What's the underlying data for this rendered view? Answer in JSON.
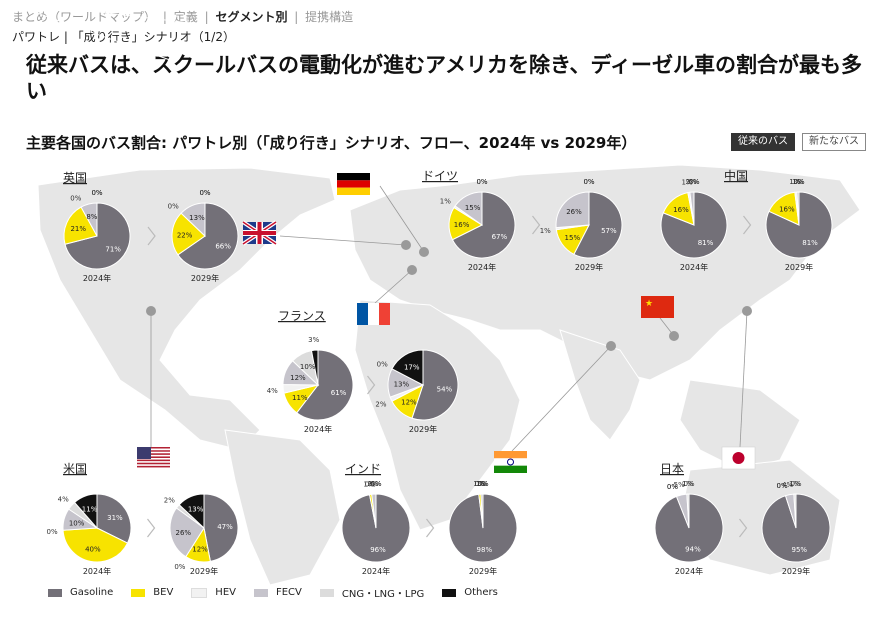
{
  "nav": {
    "items": [
      {
        "label": "まとめ（ワールドマップ）",
        "active": false
      },
      {
        "label": "定義",
        "active": false
      },
      {
        "label": "セグメント別",
        "active": true
      },
      {
        "label": "提携構造",
        "active": false
      }
    ]
  },
  "subtitle": "パワトレ | 「成り行き」シナリオ（1/2）",
  "headline": "従来バスは、スクールバスの電動化が進むアメリカを除き、ディーゼル車の割合が最も多い",
  "chart_heading": "主要各国のバス割合: パワトレ別（「成り行き」シナリオ、フロー、2024年 vs 2029年）",
  "toggles": {
    "active": "従来のバス",
    "inactive": "新たなバス"
  },
  "colors": {
    "gasoline": "#737078",
    "bev": "#f7e300",
    "hev": "#f2f2f2",
    "fecv": "#c6c4cc",
    "cng": "#dcdcdc",
    "others": "#111111",
    "map": "#e6e6e6"
  },
  "legend": [
    {
      "key": "gasoline",
      "label": "Gasoline"
    },
    {
      "key": "bev",
      "label": "BEV"
    },
    {
      "key": "hev",
      "label": "HEV"
    },
    {
      "key": "fecv",
      "label": "FECV"
    },
    {
      "key": "cng",
      "label": "CNG・LNG・LPG"
    },
    {
      "key": "others",
      "label": "Others"
    }
  ],
  "chart_data": {
    "type": "pie",
    "series_order": [
      "Gasoline",
      "BEV",
      "HEV",
      "FECV",
      "CNG・LNG・LPG",
      "Others"
    ],
    "countries": [
      {
        "name": "英国",
        "flag": "uk",
        "pies": [
          {
            "year": "2024年",
            "values": [
              71,
              21,
              0,
              8,
              0,
              0
            ]
          },
          {
            "year": "2029年",
            "values": [
              66,
              22,
              0,
              13,
              0,
              0
            ]
          }
        ]
      },
      {
        "name": "ドイツ",
        "flag": "de",
        "pies": [
          {
            "year": "2024年",
            "values": [
              67,
              16,
              1,
              15,
              0,
              0
            ]
          },
          {
            "year": "2029年",
            "values": [
              57,
              15,
              1,
              26,
              0,
              0
            ]
          }
        ]
      },
      {
        "name": "中国",
        "flag": "cn",
        "pies": [
          {
            "year": "2024年",
            "values": [
              81,
              16,
              1,
              2,
              0,
              0
            ]
          },
          {
            "year": "2029年",
            "values": [
              81,
              16,
              1,
              1,
              0,
              0
            ]
          }
        ]
      },
      {
        "name": "フランス",
        "flag": "fr",
        "pies": [
          {
            "year": "2024年",
            "values": [
              61,
              11,
              4,
              12,
              10,
              3
            ]
          },
          {
            "year": "2029年",
            "values": [
              54,
              12,
              2,
              13,
              0,
              17
            ]
          }
        ]
      },
      {
        "name": "米国",
        "flag": "us",
        "pies": [
          {
            "year": "2024年",
            "values": [
              31,
              40,
              0,
              10,
              4,
              11
            ]
          },
          {
            "year": "2029年",
            "values": [
              47,
              12,
              0,
              26,
              2,
              13
            ]
          }
        ]
      },
      {
        "name": "インド",
        "flag": "in",
        "pies": [
          {
            "year": "2024年",
            "values": [
              96,
              1,
              0,
              2,
              0,
              0
            ]
          },
          {
            "year": "2029年",
            "values": [
              98,
              1,
              0,
              1,
              0,
              0
            ]
          }
        ]
      },
      {
        "name": "日本",
        "flag": "jp",
        "pies": [
          {
            "year": "2024年",
            "values": [
              94,
              0,
              0,
              5,
              1,
              0
            ]
          },
          {
            "year": "2029年",
            "values": [
              95,
              0,
              0,
              4,
              1,
              0
            ]
          }
        ]
      }
    ]
  }
}
